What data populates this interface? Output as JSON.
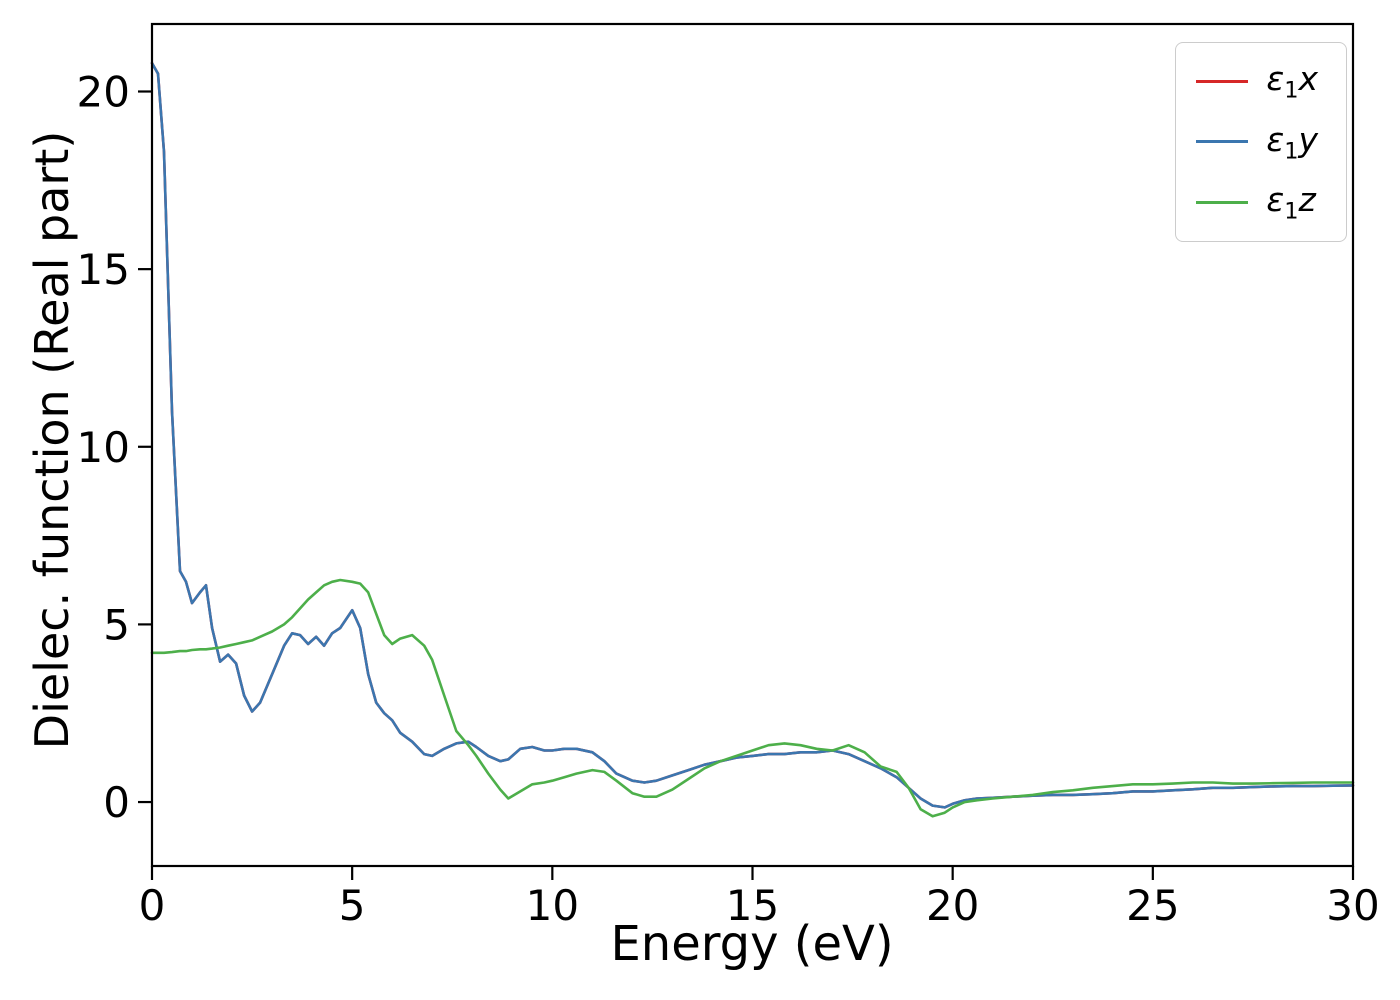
{
  "chart_data": {
    "type": "line",
    "title": "",
    "xlabel": "Energy (eV)",
    "ylabel": "Dielec. function (Real part)",
    "xlim": [
      0,
      30
    ],
    "ylim": [
      -1.8,
      21.9
    ],
    "xticks": [
      0,
      5,
      10,
      15,
      20,
      25,
      30
    ],
    "yticks": [
      0,
      5,
      10,
      15,
      20
    ],
    "grid": false,
    "legend_position": "upper right",
    "note": "red eps1x curve coincides with blue eps1y curve and is hidden beneath it",
    "x": [
      0,
      0.15,
      0.3,
      0.5,
      0.7,
      0.85,
      1.0,
      1.2,
      1.35,
      1.5,
      1.7,
      1.9,
      2.1,
      2.3,
      2.5,
      2.7,
      3.0,
      3.3,
      3.5,
      3.7,
      3.9,
      4.1,
      4.3,
      4.5,
      4.7,
      5.0,
      5.2,
      5.4,
      5.6,
      5.8,
      6.0,
      6.2,
      6.5,
      6.8,
      7.0,
      7.3,
      7.6,
      7.9,
      8.1,
      8.4,
      8.7,
      8.9,
      9.2,
      9.5,
      9.8,
      10.0,
      10.3,
      10.6,
      11.0,
      11.3,
      11.6,
      12.0,
      12.3,
      12.6,
      13.0,
      13.4,
      13.8,
      14.2,
      14.6,
      15.0,
      15.4,
      15.8,
      16.2,
      16.6,
      17.0,
      17.4,
      17.8,
      18.2,
      18.6,
      18.9,
      19.2,
      19.5,
      19.8,
      20.0,
      20.3,
      20.6,
      21.0,
      21.5,
      22.0,
      22.5,
      23.0,
      23.5,
      24.0,
      24.5,
      25.0,
      25.5,
      26.0,
      26.5,
      27.0,
      27.5,
      28.0,
      28.5,
      29.0,
      29.5,
      30.0
    ],
    "series": [
      {
        "name": "eps1_x",
        "label_plain": "ε1x",
        "color": "#d62728",
        "values": [
          20.8,
          20.5,
          18.3,
          11.0,
          6.5,
          6.2,
          5.6,
          5.9,
          6.1,
          4.9,
          3.95,
          4.15,
          3.9,
          3.0,
          2.55,
          2.8,
          3.6,
          4.4,
          4.75,
          4.7,
          4.45,
          4.65,
          4.4,
          4.75,
          4.9,
          5.4,
          4.9,
          3.6,
          2.8,
          2.5,
          2.3,
          1.95,
          1.7,
          1.35,
          1.3,
          1.5,
          1.65,
          1.7,
          1.55,
          1.3,
          1.15,
          1.2,
          1.5,
          1.55,
          1.45,
          1.45,
          1.5,
          1.5,
          1.4,
          1.15,
          0.8,
          0.6,
          0.55,
          0.6,
          0.75,
          0.9,
          1.05,
          1.15,
          1.25,
          1.3,
          1.35,
          1.35,
          1.4,
          1.4,
          1.45,
          1.35,
          1.15,
          0.95,
          0.7,
          0.4,
          0.1,
          -0.1,
          -0.15,
          -0.05,
          0.05,
          0.1,
          0.12,
          0.15,
          0.18,
          0.2,
          0.2,
          0.22,
          0.25,
          0.3,
          0.3,
          0.33,
          0.36,
          0.4,
          0.4,
          0.42,
          0.44,
          0.45,
          0.45,
          0.46,
          0.47
        ]
      },
      {
        "name": "eps1_y",
        "label_plain": "ε1y",
        "color": "#3b76af",
        "values": [
          20.8,
          20.5,
          18.3,
          11.0,
          6.5,
          6.2,
          5.6,
          5.9,
          6.1,
          4.9,
          3.95,
          4.15,
          3.9,
          3.0,
          2.55,
          2.8,
          3.6,
          4.4,
          4.75,
          4.7,
          4.45,
          4.65,
          4.4,
          4.75,
          4.9,
          5.4,
          4.9,
          3.6,
          2.8,
          2.5,
          2.3,
          1.95,
          1.7,
          1.35,
          1.3,
          1.5,
          1.65,
          1.7,
          1.55,
          1.3,
          1.15,
          1.2,
          1.5,
          1.55,
          1.45,
          1.45,
          1.5,
          1.5,
          1.4,
          1.15,
          0.8,
          0.6,
          0.55,
          0.6,
          0.75,
          0.9,
          1.05,
          1.15,
          1.25,
          1.3,
          1.35,
          1.35,
          1.4,
          1.4,
          1.45,
          1.35,
          1.15,
          0.95,
          0.7,
          0.4,
          0.1,
          -0.1,
          -0.15,
          -0.05,
          0.05,
          0.1,
          0.12,
          0.15,
          0.18,
          0.2,
          0.2,
          0.22,
          0.25,
          0.3,
          0.3,
          0.33,
          0.36,
          0.4,
          0.4,
          0.42,
          0.44,
          0.45,
          0.45,
          0.46,
          0.47
        ]
      },
      {
        "name": "eps1_z",
        "label_plain": "ε1z",
        "color": "#4daf4a",
        "values": [
          4.2,
          4.2,
          4.2,
          4.22,
          4.25,
          4.25,
          4.28,
          4.3,
          4.3,
          4.32,
          4.35,
          4.4,
          4.45,
          4.5,
          4.55,
          4.65,
          4.8,
          5.0,
          5.2,
          5.45,
          5.7,
          5.9,
          6.1,
          6.2,
          6.25,
          6.2,
          6.15,
          5.9,
          5.3,
          4.7,
          4.45,
          4.6,
          4.7,
          4.4,
          4.0,
          3.0,
          2.0,
          1.6,
          1.3,
          0.8,
          0.35,
          0.1,
          0.3,
          0.5,
          0.55,
          0.6,
          0.7,
          0.8,
          0.9,
          0.85,
          0.6,
          0.25,
          0.15,
          0.15,
          0.35,
          0.65,
          0.95,
          1.15,
          1.3,
          1.45,
          1.6,
          1.65,
          1.6,
          1.5,
          1.45,
          1.6,
          1.4,
          1.0,
          0.85,
          0.4,
          -0.2,
          -0.4,
          -0.3,
          -0.15,
          0.0,
          0.05,
          0.1,
          0.15,
          0.2,
          0.28,
          0.33,
          0.4,
          0.45,
          0.5,
          0.5,
          0.52,
          0.55,
          0.55,
          0.52,
          0.52,
          0.53,
          0.54,
          0.55,
          0.55,
          0.55
        ]
      }
    ]
  },
  "legend": {
    "entries": [
      {
        "symbol": "ε",
        "subscript": "1",
        "component": "x"
      },
      {
        "symbol": "ε",
        "subscript": "1",
        "component": "y"
      },
      {
        "symbol": "ε",
        "subscript": "1",
        "component": "z"
      }
    ]
  }
}
